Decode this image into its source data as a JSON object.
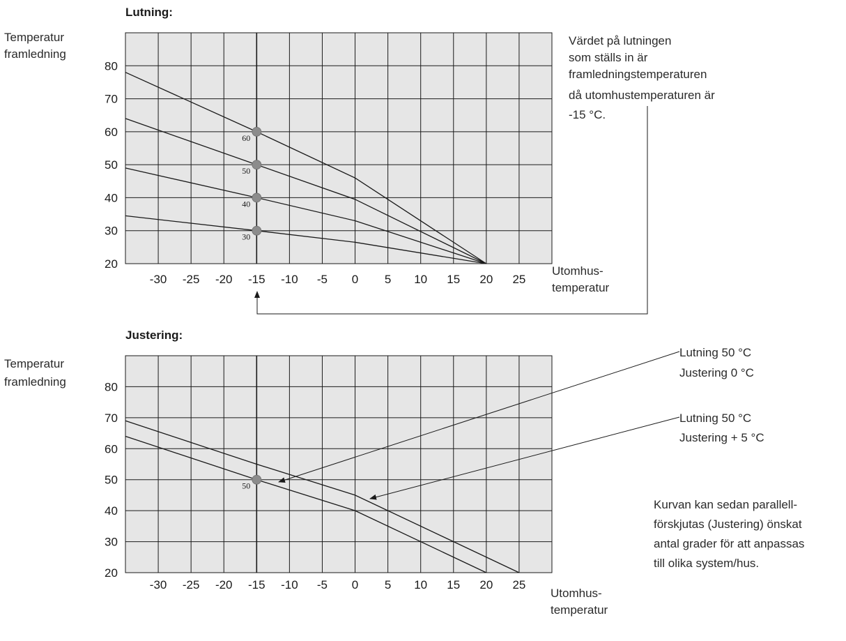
{
  "colors": {
    "plot_background": "#e6e6e6",
    "line": "#1a1a1a",
    "marker": "#8c8c8c"
  },
  "chart_data": [
    {
      "type": "line",
      "title": "Lutning:",
      "ylabel": [
        "Temperatur",
        "framledning"
      ],
      "xlabel": [
        "Utomhus-",
        "temperatur"
      ],
      "xlim": [
        -35,
        30
      ],
      "ylim": [
        20,
        90
      ],
      "x_ticks": [
        "-30",
        "-25",
        "-20",
        "-15",
        "-10",
        "-5",
        "0",
        "5",
        "10",
        "15",
        "20",
        "25"
      ],
      "y_ticks": [
        "20",
        "30",
        "40",
        "50",
        "60",
        "70",
        "80"
      ],
      "grid": true,
      "series": [
        {
          "x": [
            -35,
            -15,
            0,
            20
          ],
          "y": [
            78,
            60,
            46,
            20
          ]
        },
        {
          "x": [
            -35,
            -15,
            0,
            20
          ],
          "y": [
            64,
            50,
            39.5,
            20
          ]
        },
        {
          "x": [
            -35,
            -15,
            0,
            20
          ],
          "y": [
            49,
            40,
            33,
            20
          ]
        },
        {
          "x": [
            -35,
            -15,
            0,
            20
          ],
          "y": [
            34.5,
            30,
            26.5,
            20
          ]
        }
      ],
      "markers": [
        {
          "x": -15,
          "y": 60,
          "label": "60"
        },
        {
          "x": -15,
          "y": 50,
          "label": "50"
        },
        {
          "x": -15,
          "y": 40,
          "label": "40"
        },
        {
          "x": -15,
          "y": 30,
          "label": "30"
        }
      ],
      "annotation": [
        "Värdet på lutningen",
        "som ställs in är",
        "framledningstemperaturen",
        "då utomhustemperaturen är",
        "-15 °C."
      ]
    },
    {
      "type": "line",
      "title": "Justering:",
      "ylabel": [
        "Temperatur",
        "framledning"
      ],
      "xlabel": [
        "Utomhus-",
        "temperatur"
      ],
      "xlim": [
        -35,
        30
      ],
      "ylim": [
        20,
        90
      ],
      "x_ticks": [
        "-30",
        "-25",
        "-20",
        "-15",
        "-10",
        "-5",
        "0",
        "5",
        "10",
        "15",
        "20",
        "25"
      ],
      "y_ticks": [
        "20",
        "30",
        "40",
        "50",
        "60",
        "70",
        "80"
      ],
      "grid": true,
      "series": [
        {
          "x": [
            -35,
            -15,
            0,
            25
          ],
          "y": [
            69,
            55,
            45,
            20
          ]
        },
        {
          "x": [
            -35,
            -15,
            0,
            20
          ],
          "y": [
            64,
            50,
            40,
            20
          ]
        }
      ],
      "markers": [
        {
          "x": -15,
          "y": 50,
          "label": "50"
        }
      ],
      "callouts": [
        {
          "lines": [
            "Lutning 50 °C",
            "Justering 0 °C"
          ]
        },
        {
          "lines": [
            "Lutning 50 °C",
            "Justering + 5 °C"
          ]
        }
      ],
      "annotation": [
        "Kurvan kan sedan parallell-",
        "förskjutas (Justering) önskat",
        "antal grader för att anpassas",
        "till olika system/hus."
      ]
    }
  ]
}
